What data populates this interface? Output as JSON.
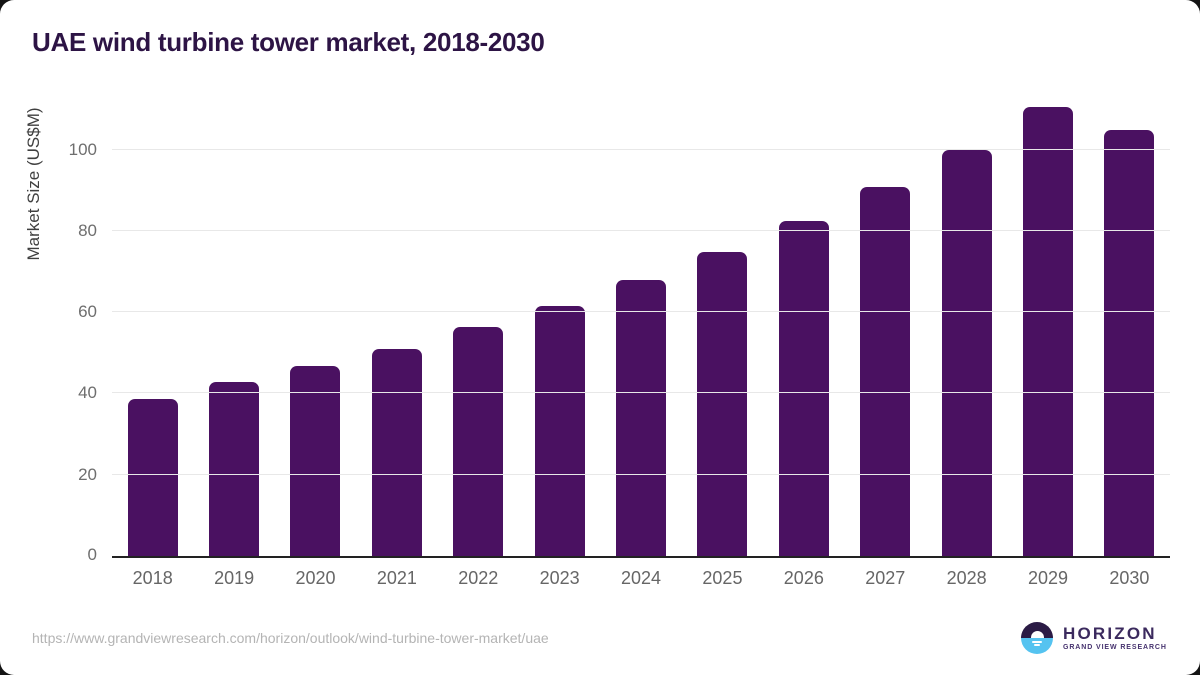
{
  "title": "UAE wind turbine tower market, 2018-2030",
  "chart_data": {
    "type": "bar",
    "title": "UAE wind turbine tower market, 2018-2030",
    "categories": [
      "2018",
      "2019",
      "2020",
      "2021",
      "2022",
      "2023",
      "2024",
      "2025",
      "2026",
      "2027",
      "2028",
      "2029",
      "2030"
    ],
    "values": [
      38.7,
      42.8,
      46.7,
      51.0,
      56.3,
      61.5,
      67.9,
      74.9,
      82.4,
      90.9,
      99.9,
      110.4,
      104.8
    ],
    "xlabel": "",
    "ylabel": "Market Size (US$M)",
    "ylim": [
      0,
      113.5
    ],
    "yticks": [
      0,
      20,
      40,
      60,
      80,
      100
    ],
    "grid": true,
    "legend": false,
    "bar_color": "#4a1161"
  },
  "colors": {
    "title": "#2d1445",
    "bar": "#4a1161",
    "gridline": "#e8e8e8",
    "axis_line": "#222222",
    "tick_text": "#6e6e6e",
    "url_text": "#b4b4b4",
    "logo_purple": "#2b1b45",
    "logo_blue": "#55c3f0"
  },
  "footer": {
    "source_url": "https://www.grandviewresearch.com/horizon/outlook/wind-turbine-tower-market/uae",
    "logo": {
      "name": "HORIZON",
      "subtitle": "GRAND VIEW RESEARCH"
    }
  }
}
